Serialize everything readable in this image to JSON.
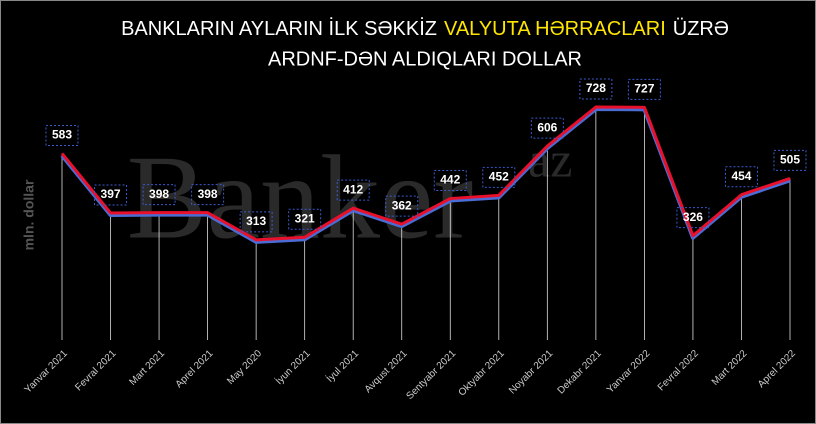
{
  "chart_data": {
    "type": "line",
    "title_line1": [
      "BANKLARIN AYLARIN İLK SƏKKİZ",
      "VALYUTA HƏRRACLARI",
      "ÜZRƏ"
    ],
    "title_line2": "ARDNF-DƏN ALDIQLARI DOLLAR",
    "ylabel": "mln. dollar",
    "watermark": [
      "Banker",
      "az"
    ],
    "categories": [
      "Yanvar 2021",
      "Fevral 2021",
      "Mart 2021",
      "Aprel 2021",
      "May 2020",
      "İyun 2021",
      "İyul 2021",
      "Avqust 2021",
      "Sentyabr 2021",
      "Oktyabr 2021",
      "Noyabr 2021",
      "Dekabr 2021",
      "Yanvar 2022",
      "Fevral 2022",
      "Mart 2022",
      "Aprel 2022"
    ],
    "values": [
      583,
      397,
      398,
      398,
      313,
      321,
      412,
      362,
      442,
      452,
      606,
      728,
      727,
      326,
      454,
      505
    ],
    "color": "#e8102a",
    "ylim": [
      0,
      750
    ]
  }
}
